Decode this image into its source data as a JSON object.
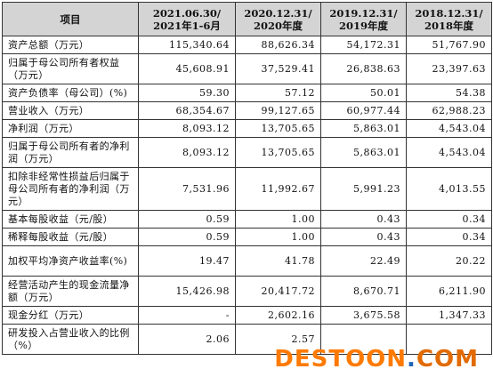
{
  "table": {
    "columns": [
      "项目",
      "2021.06.30/\n2021年1-6月",
      "2020.12.31/\n2020年度",
      "2019.12.31/\n2019年度",
      "2018.12.31/\n2018年度"
    ],
    "rows": [
      {
        "label": "资产总额（万元）",
        "values": [
          "115,340.64",
          "88,626.34",
          "54,172.31",
          "51,767.90"
        ]
      },
      {
        "label": "归属于母公司所有者权益（万元）",
        "values": [
          "45,608.91",
          "37,529.41",
          "26,838.63",
          "23,397.63"
        ]
      },
      {
        "label": "资产负债率（母公司）(%)",
        "values": [
          "59.30",
          "57.12",
          "50.01",
          "54.38"
        ]
      },
      {
        "label": "营业收入（万元）",
        "values": [
          "68,354.67",
          "99,127.65",
          "60,977.44",
          "62,988.23"
        ]
      },
      {
        "label": "净利润（万元）",
        "values": [
          "8,093.12",
          "13,705.65",
          "5,863.01",
          "4,543.04"
        ]
      },
      {
        "label": "归属于母公司所有者的净利润（万元）",
        "values": [
          "8,093.12",
          "13,705.65",
          "5,863.01",
          "4,543.04"
        ]
      },
      {
        "label": "扣除非经常性损益后归属于母公司所有者的净利润（万元）",
        "values": [
          "7,531.96",
          "11,992.67",
          "5,991.23",
          "4,013.55"
        ]
      },
      {
        "label": "基本每股收益（元/股）",
        "values": [
          "0.59",
          "1.00",
          "0.43",
          "0.34"
        ]
      },
      {
        "label": "稀释每股收益（元/股）",
        "values": [
          "0.59",
          "1.00",
          "0.43",
          "0.34"
        ]
      },
      {
        "label": "加权平均净资产收益率(%)",
        "values": [
          "19.47",
          "41.78",
          "22.49",
          "20.22"
        ]
      },
      {
        "label": "经营活动产生的现金流量净额（万元）",
        "values": [
          "15,426.98",
          "20,417.72",
          "8,670.71",
          "6,211.90"
        ]
      },
      {
        "label": "现金分红（万元）",
        "values": [
          "-",
          "2,602.16",
          "3,675.58",
          "1,347.33"
        ]
      },
      {
        "label": "研发投入占营业收入的比例（%）",
        "values": [
          "2.06",
          "2.57",
          "",
          ""
        ]
      }
    ]
  },
  "watermark": {
    "main": "DESTOON",
    "dot": ".",
    "tail": "COM"
  }
}
